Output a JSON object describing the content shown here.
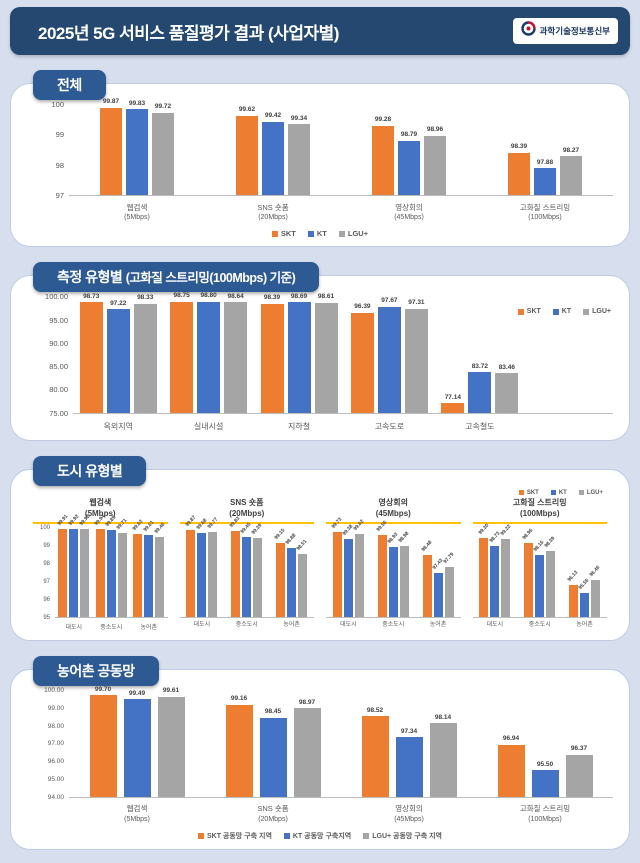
{
  "header": {
    "title": "2025년 5G 서비스 품질평가 결과 (사업자별)",
    "logo_text": "과학기술정보통신부"
  },
  "colors": {
    "series": [
      "#ED7D31",
      "#4472C4",
      "#A5A5A5"
    ],
    "accent_underline": "#FFC000",
    "header_bg": "#24486F",
    "badge_bg": "#2E5A94"
  },
  "chart_data": [
    {
      "type": "bar",
      "panel_title": "전체",
      "categories": [
        "웹검색",
        "SNS 숏폼",
        "영상회의",
        "고화질 스트리밍"
      ],
      "category_subs": [
        "(5Mbps)",
        "(20Mbps)",
        "(45Mbps)",
        "(100Mbps)"
      ],
      "series": [
        {
          "name": "SKT",
          "values": [
            99.87,
            99.62,
            99.28,
            98.39
          ]
        },
        {
          "name": "KT",
          "values": [
            99.83,
            99.42,
            98.79,
            97.88
          ]
        },
        {
          "name": "LGU+",
          "values": [
            99.72,
            99.34,
            98.96,
            98.27
          ]
        }
      ],
      "ylim": [
        97,
        100
      ],
      "yticks": [
        "100",
        "99",
        "98",
        "97"
      ],
      "legend": [
        "SKT",
        "KT",
        "LGU+"
      ],
      "legend_position": "bottom"
    },
    {
      "type": "bar",
      "panel_title": "측정 유형별",
      "panel_title_sub": "(고화질 스트리밍(100Mbps) 기준)",
      "categories": [
        "옥외지역",
        "실내시설",
        "지하철",
        "고속도로",
        "고속철도"
      ],
      "series": [
        {
          "name": "SKT",
          "values": [
            98.73,
            98.75,
            98.39,
            96.39,
            77.14
          ]
        },
        {
          "name": "KT",
          "values": [
            97.22,
            98.8,
            98.69,
            97.67,
            83.72
          ]
        },
        {
          "name": "LGU+",
          "values": [
            98.33,
            98.64,
            98.61,
            97.31,
            83.46
          ]
        }
      ],
      "ylim": [
        75,
        100
      ],
      "yticks": [
        "100.00",
        "95.00",
        "90.00",
        "85.00",
        "80.00",
        "75.00"
      ],
      "legend": [
        "SKT",
        "KT",
        "LGU+"
      ],
      "legend_position": "right"
    },
    {
      "type": "bar-multiples",
      "panel_title": "도시 유형별",
      "legend": [
        "SKT",
        "KT",
        "LGU+"
      ],
      "subcharts": [
        {
          "title": "웹검색",
          "sub": "(5Mbps)",
          "categories": [
            "대도시",
            "중소도시",
            "농어촌"
          ],
          "series": [
            {
              "name": "SKT",
              "values": [
                99.91,
                99.94,
                99.63
              ]
            },
            {
              "name": "KT",
              "values": [
                99.92,
                99.85,
                99.61
              ]
            },
            {
              "name": "LGU+",
              "values": [
                99.92,
                99.71,
                99.46
              ]
            }
          ],
          "ylim": [
            95,
            100
          ],
          "yticks": [
            "100",
            "99",
            "98",
            "97",
            "96",
            "95"
          ]
        },
        {
          "title": "SNS 숏폼",
          "sub": "(20Mbps)",
          "categories": [
            "대도시",
            "중소도시",
            "농어촌"
          ],
          "series": [
            {
              "name": "SKT",
              "values": [
                99.87,
                99.83,
                99.15
              ]
            },
            {
              "name": "KT",
              "values": [
                99.68,
                99.45,
                98.88
              ]
            },
            {
              "name": "LGU+",
              "values": [
                99.77,
                99.39,
                98.51
              ]
            }
          ],
          "ylim": [
            95,
            100
          ]
        },
        {
          "title": "영상회의",
          "sub": "(45Mbps)",
          "categories": [
            "대도시",
            "중소도시",
            "농어촌"
          ],
          "series": [
            {
              "name": "SKT",
              "values": [
                99.73,
                99.56,
                98.48
              ]
            },
            {
              "name": "KT",
              "values": [
                99.38,
                98.93,
                97.43
              ]
            },
            {
              "name": "LGU+",
              "values": [
                99.62,
                98.98,
                97.79
              ]
            }
          ],
          "ylim": [
            95,
            100
          ]
        },
        {
          "title": "고화질 스트리밍",
          "sub": "(100Mbps)",
          "categories": [
            "대도시",
            "중소도시",
            "농어촌"
          ],
          "series": [
            {
              "name": "SKT",
              "values": [
                99.3,
                98.96,
                96.13
              ]
            },
            {
              "name": "KT",
              "values": [
                98.73,
                98.16,
                95.56
              ]
            },
            {
              "name": "LGU+",
              "values": [
                99.22,
                98.39,
                96.46
              ]
            }
          ],
          "ylim": [
            94,
            100
          ]
        }
      ]
    },
    {
      "type": "bar",
      "panel_title": "농어촌 공동망",
      "categories": [
        "웹검색",
        "SNS 숏폼",
        "영상회의",
        "고화질 스트리밍"
      ],
      "category_subs": [
        "(5Mbps)",
        "(20Mbps)",
        "(45Mbps)",
        "(100Mbps)"
      ],
      "series": [
        {
          "name": "SKT 공동망 구축 지역",
          "values": [
            99.7,
            99.16,
            98.52,
            96.94
          ]
        },
        {
          "name": "KT 공동망 구축지역",
          "values": [
            99.49,
            98.45,
            97.34,
            95.5
          ]
        },
        {
          "name": "LGU+ 공동망 구축 지역",
          "values": [
            99.61,
            98.97,
            98.14,
            96.37
          ]
        }
      ],
      "ylim": [
        94,
        100
      ],
      "yticks": [
        "100.00",
        "99.00",
        "98.00",
        "97.00",
        "96.00",
        "95.00",
        "94.00"
      ],
      "legend": [
        "SKT 공동망 구축 지역",
        "KT 공동망 구축지역",
        "LGU+ 공동망 구축 지역"
      ],
      "legend_position": "bottom"
    }
  ]
}
